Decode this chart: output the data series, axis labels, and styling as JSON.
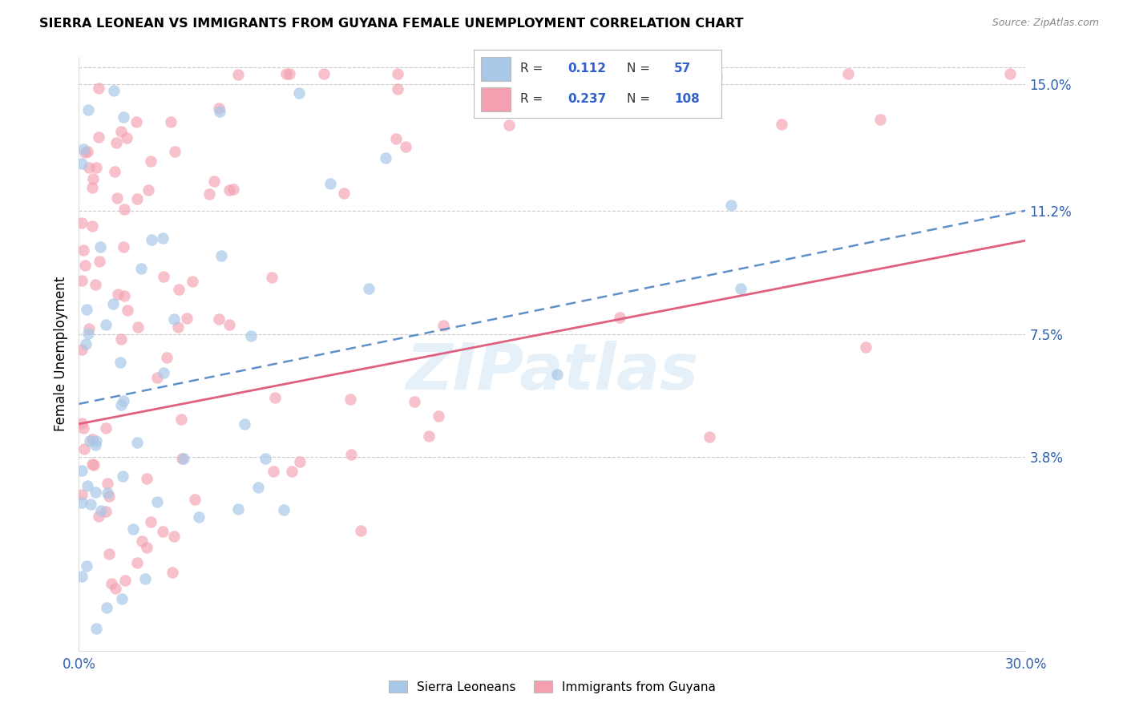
{
  "title": "SIERRA LEONEAN VS IMMIGRANTS FROM GUYANA FEMALE UNEMPLOYMENT CORRELATION CHART",
  "source": "Source: ZipAtlas.com",
  "ylabel": "Female Unemployment",
  "x_min": 0.0,
  "x_max": 0.3,
  "y_min": -0.02,
  "y_max": 0.158,
  "y_tick_labels_right": [
    "15.0%",
    "11.2%",
    "7.5%",
    "3.8%"
  ],
  "y_tick_vals_right": [
    0.15,
    0.112,
    0.075,
    0.038
  ],
  "watermark": "ZIPatlas",
  "color_blue": "#a8c8e8",
  "color_pink": "#f4a0b0",
  "color_line_blue": "#6090c8",
  "color_line_pink": "#e06080",
  "blue_line_start_y": 0.054,
  "blue_line_end_y": 0.112,
  "pink_line_start_y": 0.048,
  "pink_line_end_y": 0.103,
  "sierra_seed": 42,
  "guyana_seed": 99
}
